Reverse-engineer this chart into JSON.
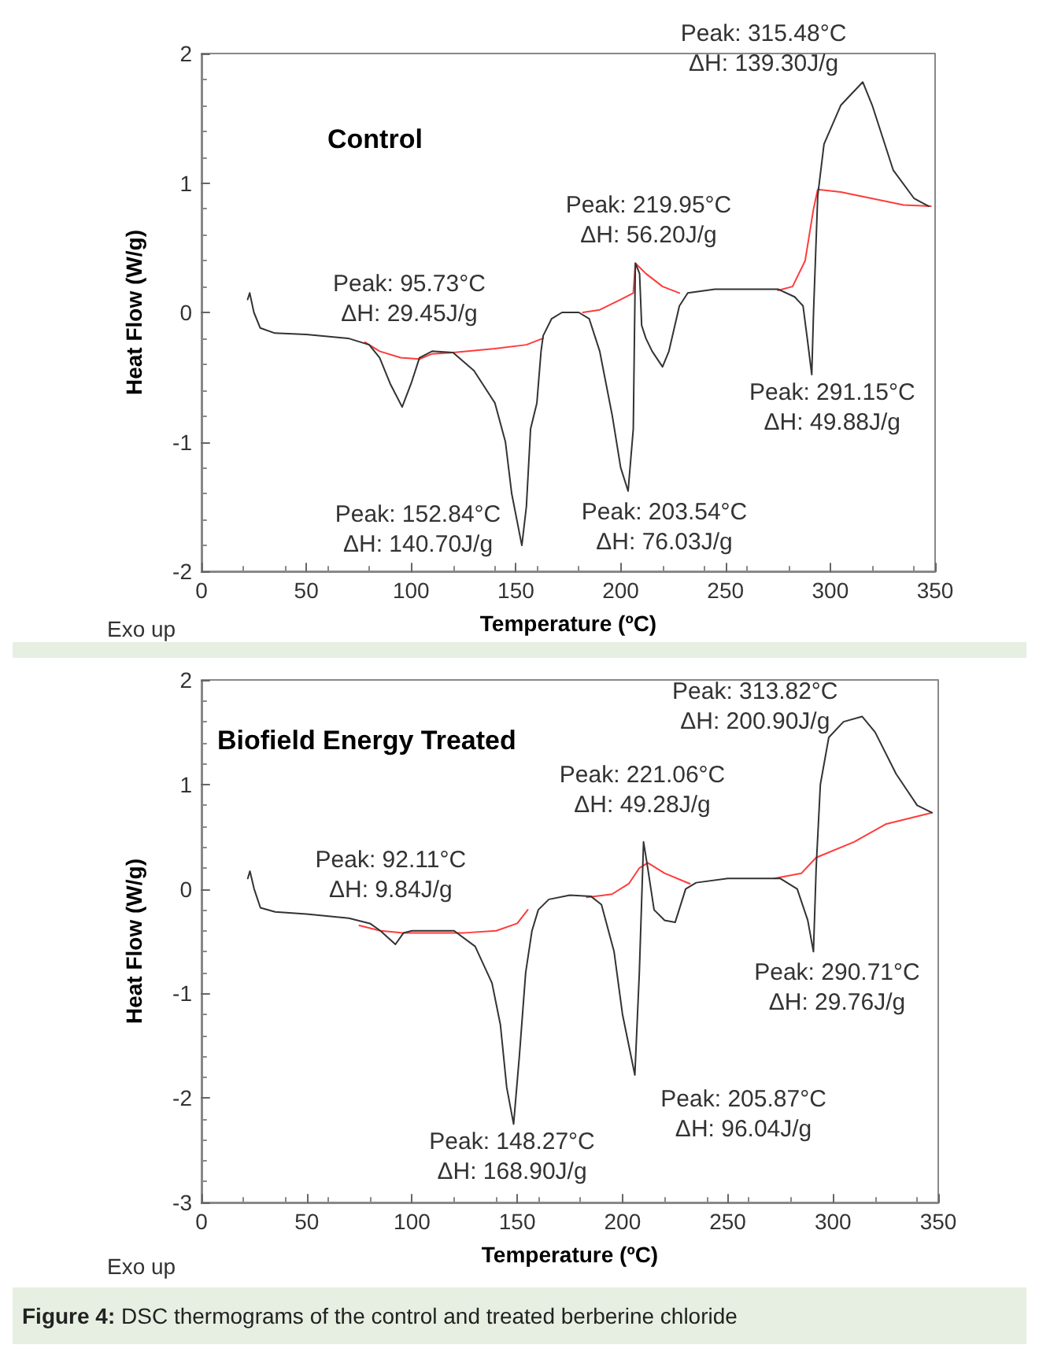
{
  "chart_data": [
    {
      "type": "line",
      "title": "Control",
      "xlabel": "Temperature (ºC)",
      "ylabel": "Heat Flow (W/g)",
      "xlim": [
        0,
        350
      ],
      "xticks": [
        0,
        50,
        100,
        150,
        200,
        250,
        300,
        350
      ],
      "ylim": [
        -2,
        2
      ],
      "yticks": [
        -2,
        -1,
        0,
        1,
        2
      ],
      "grid": false,
      "marker": "none",
      "line_style": "solid",
      "series": [
        {
          "color": "#333333",
          "x": [
            22,
            23,
            25,
            28,
            35,
            50,
            70,
            80,
            85,
            90,
            95.73,
            100,
            104,
            110,
            120,
            130,
            140,
            145,
            148,
            152.84,
            155,
            157,
            160,
            162,
            163,
            167,
            172,
            180,
            185,
            190,
            196,
            200,
            203.54,
            206,
            207,
            209,
            210,
            212,
            215,
            219.95,
            223,
            228,
            232,
            245,
            275,
            283,
            287,
            289,
            291.15,
            292,
            294,
            297,
            305,
            315.48,
            320,
            330,
            340,
            347
          ],
          "values": [
            0.1,
            0.15,
            0,
            -0.12,
            -0.16,
            -0.17,
            -0.2,
            -0.25,
            -0.35,
            -0.55,
            -0.73,
            -0.55,
            -0.35,
            -0.3,
            -0.31,
            -0.45,
            -0.7,
            -1,
            -1.4,
            -1.8,
            -1.5,
            -0.9,
            -0.7,
            -0.3,
            -0.18,
            -0.05,
            0,
            0,
            -0.05,
            -0.3,
            -0.8,
            -1.2,
            -1.38,
            -0.9,
            0.38,
            0.3,
            -0.1,
            -0.2,
            -0.3,
            -0.42,
            -0.3,
            0.05,
            0.15,
            0.18,
            0.18,
            0.12,
            0.05,
            -0.2,
            -0.48,
            0,
            0.9,
            1.3,
            1.6,
            1.78,
            1.6,
            1.1,
            0.88,
            0.82
          ]
        },
        {
          "color": "#ff3b3b",
          "x": [
            78,
            85,
            95,
            104,
            110,
            120,
            140,
            155,
            163,
            172,
            182,
            190,
            200,
            206,
            207,
            212,
            220,
            228,
            250,
            275,
            282,
            288,
            292,
            294,
            305,
            320,
            335,
            348
          ],
          "values": [
            -0.23,
            -0.3,
            -0.35,
            -0.36,
            -0.32,
            -0.31,
            -0.28,
            -0.25,
            -0.2,
            null,
            0,
            0.02,
            0.1,
            0.15,
            0.38,
            0.3,
            0.2,
            0.15,
            null,
            0.17,
            0.2,
            0.4,
            0.8,
            0.95,
            0.93,
            0.88,
            0.83,
            0.82
          ]
        }
      ],
      "annotations": [
        "Peak: 95.73°C\nΔH: 29.45J/g",
        {
          "text": "Peak: 152.84°C\nΔH: 140.70J/g",
          "x": 152.84,
          "y": -1.8
        },
        {
          "text": "Peak: 203.54°C\nΔH: 76.03J/g",
          "x": 203.54,
          "y": -1.38
        },
        "Peak: 219.95°C\nΔH: 56.20J/g",
        {
          "text": "Peak: 291.15°C\nΔH: 49.88J/g",
          "x": 291.15,
          "y": -0.48
        },
        {
          "text": "Peak: 315.48°C\nΔH: 139.30J/g",
          "x": 315.48,
          "y": 1.78
        },
        "Exo up"
      ]
    },
    {
      "type": "line",
      "title": "Biofield Energy Treated",
      "xlabel": "Temperature (ºC)",
      "ylabel": "Heat Flow (W/g)",
      "xlim": [
        0,
        350
      ],
      "xticks": [
        0,
        50,
        100,
        150,
        200,
        250,
        300,
        350
      ],
      "ylim": [
        -3,
        2
      ],
      "yticks": [
        -3,
        -2,
        -1,
        0,
        1,
        2
      ],
      "grid": false,
      "marker": "none",
      "line_style": "solid",
      "series": [
        {
          "color": "#333333",
          "x": [
            22,
            23,
            25,
            28,
            35,
            50,
            70,
            80,
            85,
            92.11,
            96,
            100,
            120,
            130,
            138,
            142,
            145,
            148.27,
            151,
            154,
            157,
            160,
            165,
            175,
            185,
            190,
            196,
            200,
            205.87,
            208,
            210,
            212,
            215,
            220,
            225,
            230,
            235,
            250,
            275,
            283,
            288,
            290.71,
            292,
            294,
            298,
            305,
            313.82,
            320,
            330,
            340,
            347
          ],
          "values": [
            0.1,
            0.17,
            0,
            -0.18,
            -0.22,
            -0.24,
            -0.28,
            -0.33,
            -0.4,
            -0.53,
            -0.42,
            -0.4,
            -0.4,
            -0.55,
            -0.9,
            -1.3,
            -1.9,
            -2.25,
            -1.6,
            -0.8,
            -0.4,
            -0.2,
            -0.1,
            -0.06,
            -0.07,
            -0.15,
            -0.6,
            -1.2,
            -1.78,
            -0.8,
            0.45,
            0.2,
            -0.2,
            -0.3,
            -0.32,
            0,
            0.06,
            0.1,
            0.1,
            0,
            -0.3,
            -0.6,
            0.2,
            1,
            1.45,
            1.6,
            1.65,
            1.5,
            1.1,
            0.8,
            0.73
          ]
        },
        {
          "color": "#ff3b3b",
          "x": [
            75,
            85,
            95,
            110,
            125,
            140,
            150,
            155,
            170,
            183,
            195,
            203,
            208,
            212,
            220,
            232,
            250,
            272,
            285,
            292,
            310,
            325,
            347
          ],
          "values": [
            -0.35,
            -0.4,
            -0.42,
            -0.42,
            -0.42,
            -0.4,
            -0.33,
            -0.2,
            null,
            -0.08,
            -0.05,
            0.05,
            0.2,
            0.25,
            0.15,
            0.05,
            null,
            0.1,
            0.15,
            0.3,
            0.45,
            0.62,
            0.73
          ]
        }
      ],
      "annotations": [
        {
          "text": "Peak: 92.11°C\nΔH: 9.84J/g",
          "x": 92.11,
          "y": -0.53
        },
        {
          "text": "Peak: 148.27°C\nΔH: 168.90J/g",
          "x": 148.27,
          "y": -2.25
        },
        {
          "text": "Peak: 205.87°C\nΔH: 96.04J/g",
          "x": 205.87,
          "y": -1.78
        },
        "Peak: 221.06°C\nΔH: 49.28J/g",
        {
          "text": "Peak: 290.71°C\nΔH: 29.76J/g",
          "x": 290.71,
          "y": -0.6
        },
        {
          "text": "Peak: 313.82°C\nΔH: 200.90J/g",
          "x": 313.82,
          "y": 1.65
        },
        "Exo up",
        "Figure 4: DSC thermograms of the control and treated berberine chloride"
      ]
    }
  ]
}
